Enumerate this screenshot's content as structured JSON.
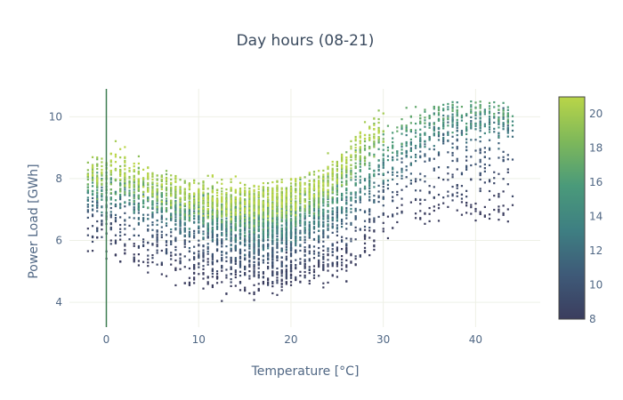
{
  "chart_data": {
    "type": "scatter",
    "title": "Day hours (08-21)",
    "xlabel": "Temperature [°C]",
    "ylabel": "Power Load [GWh]",
    "xlim": [
      -4,
      47
    ],
    "ylim": [
      3.2,
      10.9
    ],
    "x_ticks": [
      0,
      10,
      20,
      30,
      40
    ],
    "y_ticks": [
      4,
      6,
      8,
      10
    ],
    "grid": true,
    "zero_line_x": 0,
    "color_variable": "hour",
    "colorbar": {
      "range": [
        8,
        21
      ],
      "ticks": [
        8,
        10,
        12,
        14,
        16,
        18,
        20
      ],
      "colorscale": [
        "#3b3d5e",
        "#3e5a78",
        "#3e7f82",
        "#4a9a7a",
        "#7eb85a",
        "#b9d548"
      ]
    },
    "point_count_estimate": 5000,
    "shape_notes": "U-shaped relationship: load falls from about 8 GWh at 0 °C to about 6.5 GWh near 15-20 °C, then rises to about 10 GWh above 35 °C; later hours (lighter colors) sit higher.",
    "series": [
      {
        "hour": 8,
        "points": [
          [
            0,
            6.0
          ],
          [
            3,
            5.5
          ],
          [
            6,
            5.2
          ],
          [
            9,
            5.0
          ],
          [
            12,
            4.8
          ],
          [
            15,
            4.6
          ],
          [
            18,
            4.8
          ],
          [
            21,
            4.9
          ],
          [
            24,
            5.1
          ],
          [
            27,
            5.6
          ],
          [
            30,
            6.4
          ],
          [
            33,
            7.0
          ]
        ]
      },
      {
        "hour": 11,
        "points": [
          [
            1,
            7.2
          ],
          [
            4,
            6.9
          ],
          [
            7,
            6.6
          ],
          [
            10,
            6.3
          ],
          [
            13,
            6.1
          ],
          [
            16,
            5.9
          ],
          [
            19,
            6.0
          ],
          [
            22,
            6.2
          ],
          [
            25,
            6.6
          ],
          [
            28,
            7.3
          ],
          [
            31,
            8.1
          ],
          [
            34,
            8.8
          ],
          [
            37,
            9.5
          ]
        ]
      },
      {
        "hour": 14,
        "points": [
          [
            2,
            7.6
          ],
          [
            5,
            7.3
          ],
          [
            8,
            7.0
          ],
          [
            11,
            6.8
          ],
          [
            14,
            6.6
          ],
          [
            17,
            6.5
          ],
          [
            20,
            6.6
          ],
          [
            23,
            6.9
          ],
          [
            26,
            7.4
          ],
          [
            29,
            8.1
          ],
          [
            32,
            8.9
          ],
          [
            35,
            9.5
          ],
          [
            38,
            9.9
          ]
        ]
      },
      {
        "hour": 17,
        "points": [
          [
            0,
            7.9
          ],
          [
            3,
            7.7
          ],
          [
            6,
            7.4
          ],
          [
            9,
            7.2
          ],
          [
            12,
            7.0
          ],
          [
            15,
            6.9
          ],
          [
            18,
            7.0
          ],
          [
            21,
            7.2
          ],
          [
            24,
            7.6
          ],
          [
            27,
            8.4
          ],
          [
            30,
            9.2
          ],
          [
            33,
            9.8
          ],
          [
            36,
            10.2
          ],
          [
            41,
            10.3
          ],
          [
            43,
            10.2
          ]
        ]
      },
      {
        "hour": 20,
        "points": [
          [
            -1,
            8.3
          ],
          [
            1,
            8.5
          ],
          [
            4,
            8.0
          ],
          [
            7,
            7.7
          ],
          [
            10,
            7.5
          ],
          [
            13,
            7.3
          ],
          [
            16,
            7.3
          ],
          [
            19,
            7.4
          ],
          [
            22,
            7.6
          ],
          [
            25,
            8.2
          ],
          [
            27,
            9.0
          ],
          [
            29,
            9.6
          ]
        ]
      }
    ]
  }
}
